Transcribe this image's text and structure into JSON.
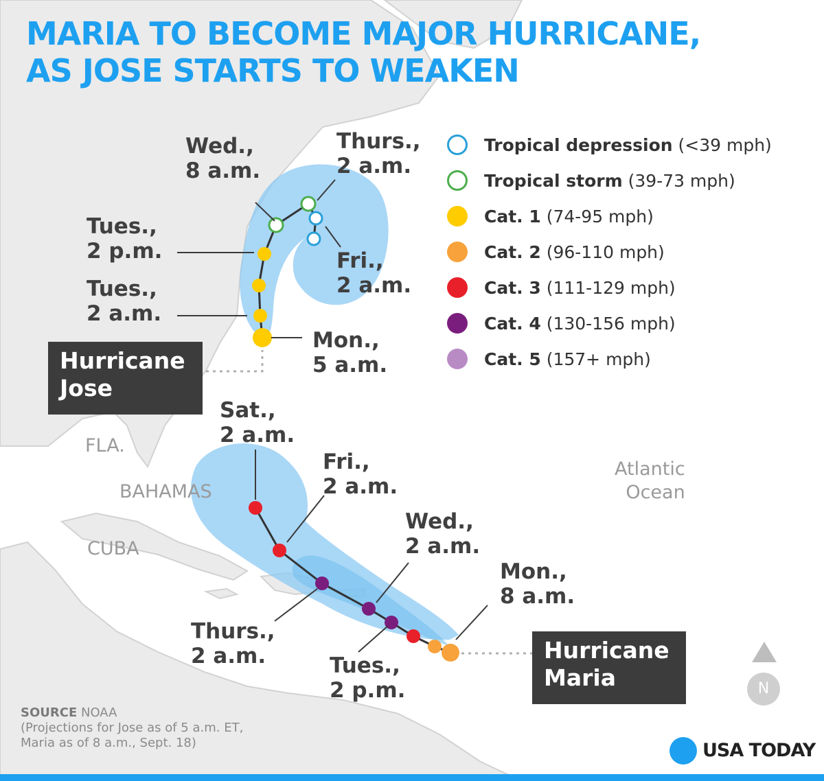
{
  "title_lines": [
    "MARIA TO BECOME MAJOR HURRICANE,",
    "AS JOSE STARTS TO WEAKEN"
  ],
  "colors": {
    "accent": "#1ea0f0",
    "tropical_depression": "#2aa0d8",
    "tropical_storm": "#4cae4c",
    "cat1": "#ffcc00",
    "cat2": "#f7a23b",
    "cat3": "#e8202a",
    "cat4": "#7a1e7e",
    "cat5": "#b98bc5",
    "cone": "#8ccaf3",
    "label_box": "#3c3c3c"
  },
  "legend": [
    {
      "key": "tropical_depression",
      "name": "Tropical depression",
      "range": "(<39 mph)",
      "hollow": true
    },
    {
      "key": "tropical_storm",
      "name": "Tropical storm",
      "range": "(39-73 mph)",
      "hollow": true
    },
    {
      "key": "cat1",
      "name": "Cat. 1",
      "range": "(74-95 mph)",
      "hollow": false
    },
    {
      "key": "cat2",
      "name": "Cat. 2",
      "range": "(96-110 mph)",
      "hollow": false
    },
    {
      "key": "cat3",
      "name": "Cat. 3",
      "range": "(111-129 mph)",
      "hollow": false
    },
    {
      "key": "cat4",
      "name": "Cat. 4",
      "range": "(130-156 mph)",
      "hollow": false
    },
    {
      "key": "cat5",
      "name": "Cat. 5",
      "range": "(157+ mph)",
      "hollow": false
    }
  ],
  "storms": {
    "jose": {
      "name_lines": [
        "Hurricane",
        "Jose"
      ],
      "track_categories": [
        "cat1",
        "cat1",
        "cat1",
        "cat1",
        "tropical_storm",
        "tropical_storm",
        "tropical_depression",
        "tropical_depression"
      ],
      "time_labels": {
        "mon": [
          "Mon.,",
          "5 a.m."
        ],
        "tues_am": [
          "Tues.,",
          "2 a.m."
        ],
        "tues_pm": [
          "Tues.,",
          "2 p.m."
        ],
        "wed": [
          "Wed.,",
          "8 a.m."
        ],
        "thurs": [
          "Thurs.,",
          "2 a.m."
        ],
        "fri": [
          "Fri.,",
          "2 a.m."
        ]
      }
    },
    "maria": {
      "name_lines": [
        "Hurricane",
        "Maria"
      ],
      "track_categories": [
        "cat2",
        "cat2",
        "cat3",
        "cat4",
        "cat4",
        "cat4",
        "cat3",
        "cat3"
      ],
      "time_labels": {
        "mon": [
          "Mon.,",
          "8 a.m."
        ],
        "tues": [
          "Tues.,",
          "2 p.m."
        ],
        "wed": [
          "Wed.,",
          "2 a.m."
        ],
        "thurs": [
          "Thurs.,",
          "2 a.m."
        ],
        "fri": [
          "Fri.,",
          "2 a.m."
        ],
        "sat": [
          "Sat.,",
          "2 a.m."
        ]
      }
    }
  },
  "places": {
    "fla": "FLA.",
    "bahamas": "BAHAMAS",
    "cuba": "CUBA",
    "ocean": [
      "Atlantic",
      "Ocean"
    ]
  },
  "source": {
    "label": "SOURCE",
    "value": "NOAA",
    "notes": [
      "(Projections for Jose as of 5 a.m. ET,",
      "Maria as of 8 a.m., Sept. 18)"
    ]
  },
  "brand": "USA TODAY",
  "north": "N"
}
